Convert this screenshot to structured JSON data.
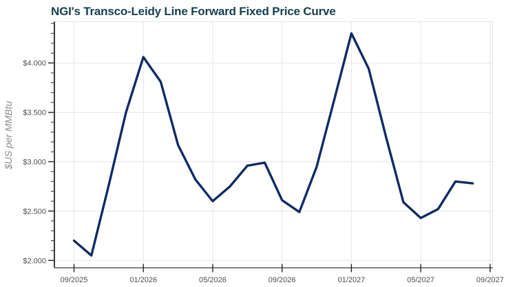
{
  "chart_data": {
    "type": "line",
    "title": "NGI's Transco-Leidy Line Forward Fixed Price Curve",
    "xlabel": "",
    "ylabel": "$US per MMBtu",
    "legend": "none",
    "grid": true,
    "x": [
      "09/2025",
      "10/2025",
      "11/2025",
      "12/2025",
      "01/2026",
      "02/2026",
      "03/2026",
      "04/2026",
      "05/2026",
      "06/2026",
      "07/2026",
      "08/2026",
      "09/2026",
      "10/2026",
      "11/2026",
      "12/2026",
      "01/2027",
      "02/2027",
      "03/2027",
      "04/2027",
      "05/2027",
      "06/2027",
      "07/2027",
      "08/2027"
    ],
    "values": [
      2.2,
      2.05,
      2.76,
      3.5,
      4.06,
      3.81,
      3.17,
      2.82,
      2.6,
      2.75,
      2.96,
      2.99,
      2.61,
      2.49,
      2.95,
      3.62,
      4.3,
      3.94,
      3.25,
      2.59,
      2.43,
      2.52,
      2.8,
      2.78
    ],
    "x_tick_labels": [
      "09/2025",
      "01/2026",
      "05/2026",
      "09/2026",
      "01/2027",
      "05/2027",
      "09/2027"
    ],
    "x_tick_month_indices": [
      0,
      4,
      8,
      12,
      16,
      20,
      24
    ],
    "y_tick_values": [
      2.0,
      2.5,
      3.0,
      3.5,
      4.0
    ],
    "y_tick_labels": [
      "$2.000",
      "$2.500",
      "$3.000",
      "$3.500",
      "$4.000"
    ],
    "y_minor_tick_step": 0.1,
    "ylim": [
      1.93,
      4.42
    ],
    "colors": {
      "series_line": "#0f2b66",
      "title": "#133f4e",
      "tick_label": "#4d4d4d",
      "axis_title": "#8a8a8a",
      "grid": "#e6e6e6",
      "plot_border": "#e6e6e6",
      "x_axis_line": "#808080",
      "y_axis_line": "#3a3a3a",
      "tick": "#222222",
      "background": "#ffffff"
    }
  }
}
